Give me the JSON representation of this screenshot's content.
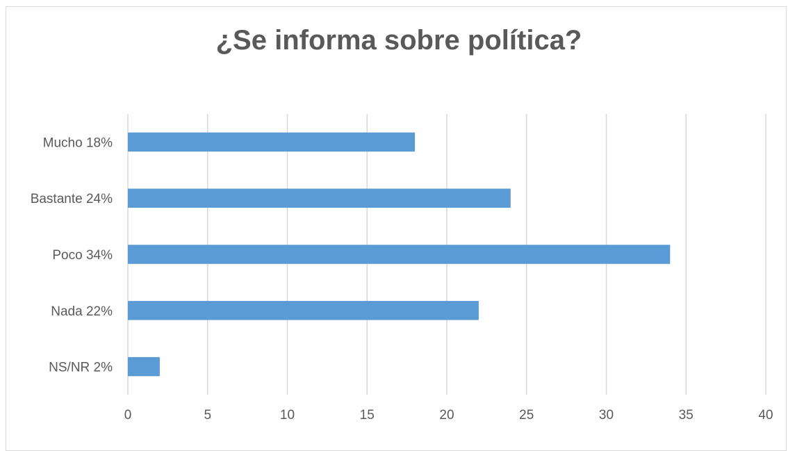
{
  "chart_data": {
    "type": "bar",
    "orientation": "horizontal",
    "title": "¿Se informa sobre política?",
    "categories": [
      "Mucho  18%",
      "Bastante  24%",
      "Poco  34%",
      "Nada  22%",
      "NS/NR  2%"
    ],
    "values": [
      18,
      24,
      34,
      22,
      2
    ],
    "xlim": [
      0,
      40
    ],
    "x_ticks": [
      0,
      5,
      10,
      15,
      20,
      25,
      30,
      35,
      40
    ],
    "xlabel": "",
    "ylabel": "",
    "grid": "vertical",
    "legend": "none",
    "bar_color": "#5b9bd5",
    "grid_color": "#d9d9d9",
    "text_color": "#595959"
  }
}
